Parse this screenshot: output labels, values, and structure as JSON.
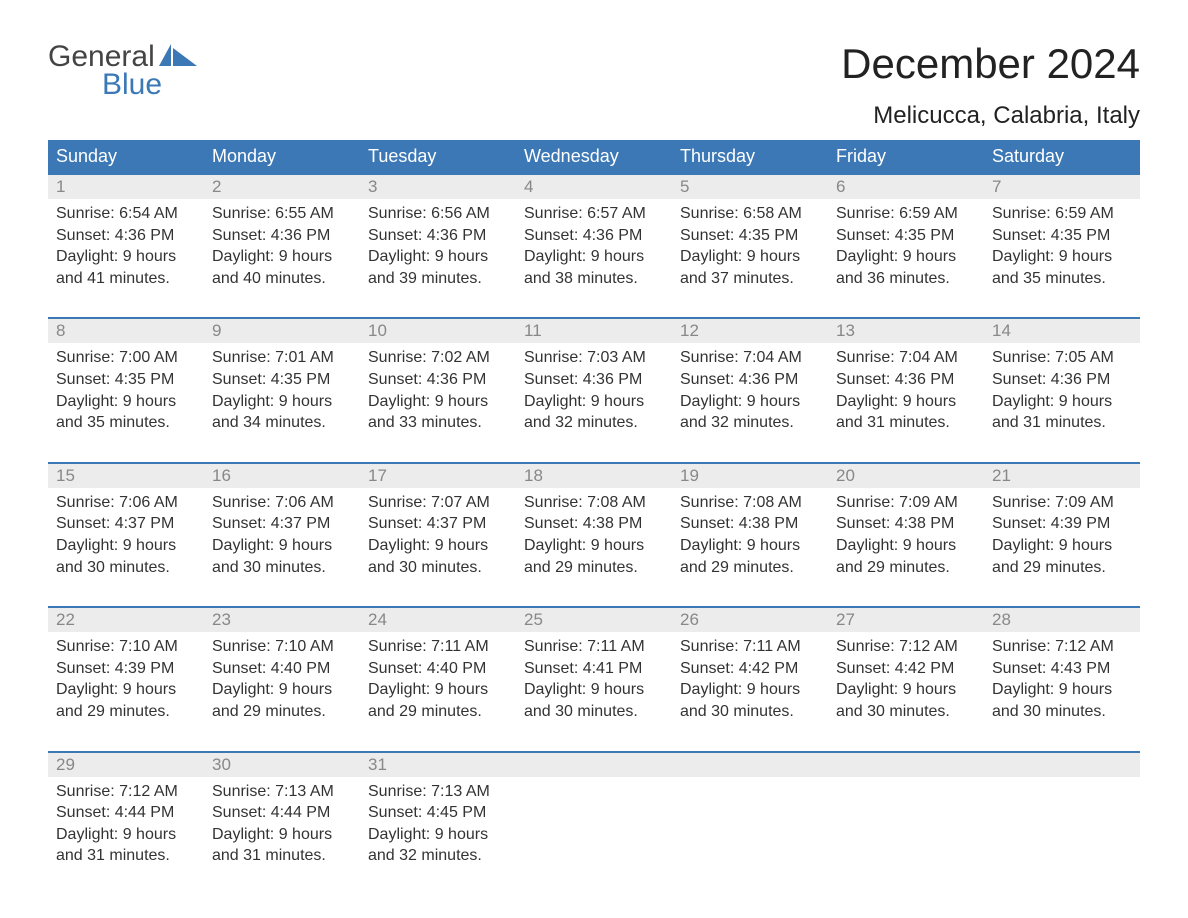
{
  "logo": {
    "word1": "General",
    "word2": "Blue"
  },
  "title": "December 2024",
  "location": "Melicucca, Calabria, Italy",
  "colors": {
    "header_bg": "#3b78b5",
    "header_text": "#ffffff",
    "daynum_bg": "#ececec",
    "daynum_text": "#888888",
    "body_text": "#333333",
    "rule": "#3b78b5",
    "logo_gray": "#444444",
    "logo_blue": "#3b78b5"
  },
  "day_names": [
    "Sunday",
    "Monday",
    "Tuesday",
    "Wednesday",
    "Thursday",
    "Friday",
    "Saturday"
  ],
  "weeks": [
    [
      {
        "n": "1",
        "sunrise": "6:54 AM",
        "sunset": "4:36 PM",
        "dl1": "9 hours",
        "dl2": "and 41 minutes."
      },
      {
        "n": "2",
        "sunrise": "6:55 AM",
        "sunset": "4:36 PM",
        "dl1": "9 hours",
        "dl2": "and 40 minutes."
      },
      {
        "n": "3",
        "sunrise": "6:56 AM",
        "sunset": "4:36 PM",
        "dl1": "9 hours",
        "dl2": "and 39 minutes."
      },
      {
        "n": "4",
        "sunrise": "6:57 AM",
        "sunset": "4:36 PM",
        "dl1": "9 hours",
        "dl2": "and 38 minutes."
      },
      {
        "n": "5",
        "sunrise": "6:58 AM",
        "sunset": "4:35 PM",
        "dl1": "9 hours",
        "dl2": "and 37 minutes."
      },
      {
        "n": "6",
        "sunrise": "6:59 AM",
        "sunset": "4:35 PM",
        "dl1": "9 hours",
        "dl2": "and 36 minutes."
      },
      {
        "n": "7",
        "sunrise": "6:59 AM",
        "sunset": "4:35 PM",
        "dl1": "9 hours",
        "dl2": "and 35 minutes."
      }
    ],
    [
      {
        "n": "8",
        "sunrise": "7:00 AM",
        "sunset": "4:35 PM",
        "dl1": "9 hours",
        "dl2": "and 35 minutes."
      },
      {
        "n": "9",
        "sunrise": "7:01 AM",
        "sunset": "4:35 PM",
        "dl1": "9 hours",
        "dl2": "and 34 minutes."
      },
      {
        "n": "10",
        "sunrise": "7:02 AM",
        "sunset": "4:36 PM",
        "dl1": "9 hours",
        "dl2": "and 33 minutes."
      },
      {
        "n": "11",
        "sunrise": "7:03 AM",
        "sunset": "4:36 PM",
        "dl1": "9 hours",
        "dl2": "and 32 minutes."
      },
      {
        "n": "12",
        "sunrise": "7:04 AM",
        "sunset": "4:36 PM",
        "dl1": "9 hours",
        "dl2": "and 32 minutes."
      },
      {
        "n": "13",
        "sunrise": "7:04 AM",
        "sunset": "4:36 PM",
        "dl1": "9 hours",
        "dl2": "and 31 minutes."
      },
      {
        "n": "14",
        "sunrise": "7:05 AM",
        "sunset": "4:36 PM",
        "dl1": "9 hours",
        "dl2": "and 31 minutes."
      }
    ],
    [
      {
        "n": "15",
        "sunrise": "7:06 AM",
        "sunset": "4:37 PM",
        "dl1": "9 hours",
        "dl2": "and 30 minutes."
      },
      {
        "n": "16",
        "sunrise": "7:06 AM",
        "sunset": "4:37 PM",
        "dl1": "9 hours",
        "dl2": "and 30 minutes."
      },
      {
        "n": "17",
        "sunrise": "7:07 AM",
        "sunset": "4:37 PM",
        "dl1": "9 hours",
        "dl2": "and 30 minutes."
      },
      {
        "n": "18",
        "sunrise": "7:08 AM",
        "sunset": "4:38 PM",
        "dl1": "9 hours",
        "dl2": "and 29 minutes."
      },
      {
        "n": "19",
        "sunrise": "7:08 AM",
        "sunset": "4:38 PM",
        "dl1": "9 hours",
        "dl2": "and 29 minutes."
      },
      {
        "n": "20",
        "sunrise": "7:09 AM",
        "sunset": "4:38 PM",
        "dl1": "9 hours",
        "dl2": "and 29 minutes."
      },
      {
        "n": "21",
        "sunrise": "7:09 AM",
        "sunset": "4:39 PM",
        "dl1": "9 hours",
        "dl2": "and 29 minutes."
      }
    ],
    [
      {
        "n": "22",
        "sunrise": "7:10 AM",
        "sunset": "4:39 PM",
        "dl1": "9 hours",
        "dl2": "and 29 minutes."
      },
      {
        "n": "23",
        "sunrise": "7:10 AM",
        "sunset": "4:40 PM",
        "dl1": "9 hours",
        "dl2": "and 29 minutes."
      },
      {
        "n": "24",
        "sunrise": "7:11 AM",
        "sunset": "4:40 PM",
        "dl1": "9 hours",
        "dl2": "and 29 minutes."
      },
      {
        "n": "25",
        "sunrise": "7:11 AM",
        "sunset": "4:41 PM",
        "dl1": "9 hours",
        "dl2": "and 30 minutes."
      },
      {
        "n": "26",
        "sunrise": "7:11 AM",
        "sunset": "4:42 PM",
        "dl1": "9 hours",
        "dl2": "and 30 minutes."
      },
      {
        "n": "27",
        "sunrise": "7:12 AM",
        "sunset": "4:42 PM",
        "dl1": "9 hours",
        "dl2": "and 30 minutes."
      },
      {
        "n": "28",
        "sunrise": "7:12 AM",
        "sunset": "4:43 PM",
        "dl1": "9 hours",
        "dl2": "and 30 minutes."
      }
    ],
    [
      {
        "n": "29",
        "sunrise": "7:12 AM",
        "sunset": "4:44 PM",
        "dl1": "9 hours",
        "dl2": "and 31 minutes."
      },
      {
        "n": "30",
        "sunrise": "7:13 AM",
        "sunset": "4:44 PM",
        "dl1": "9 hours",
        "dl2": "and 31 minutes."
      },
      {
        "n": "31",
        "sunrise": "7:13 AM",
        "sunset": "4:45 PM",
        "dl1": "9 hours",
        "dl2": "and 32 minutes."
      },
      null,
      null,
      null,
      null
    ]
  ],
  "labels": {
    "sunrise_prefix": "Sunrise: ",
    "sunset_prefix": "Sunset: ",
    "daylight_prefix": "Daylight: "
  }
}
